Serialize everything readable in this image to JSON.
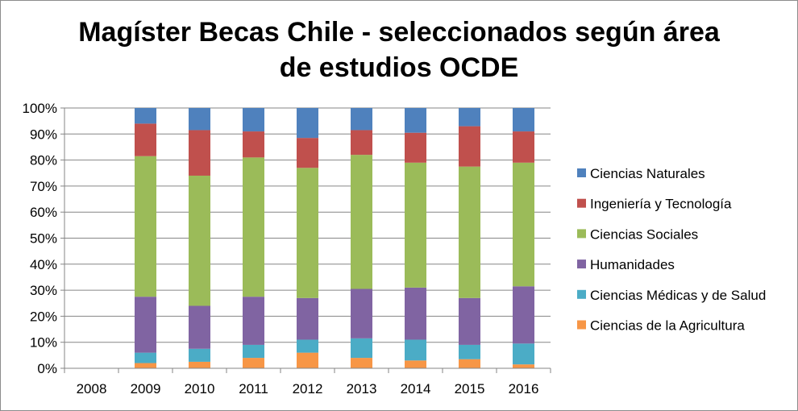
{
  "chart_data": {
    "type": "bar",
    "stacked": true,
    "percent": true,
    "title_line1": "Magíster Becas Chile - seleccionados según área",
    "title_line2": "de estudios OCDE",
    "categories": [
      "2008",
      "2009",
      "2010",
      "2011",
      "2012",
      "2013",
      "2014",
      "2015",
      "2016"
    ],
    "y_ticks": [
      "0%",
      "10%",
      "20%",
      "30%",
      "40%",
      "50%",
      "60%",
      "70%",
      "80%",
      "90%",
      "100%"
    ],
    "ylim": [
      0,
      100
    ],
    "grid": true,
    "legend_position": "right",
    "series": [
      {
        "name": "Ciencias de la Agricultura",
        "color": "#f79646",
        "values": [
          0,
          2,
          2.5,
          4,
          6,
          4,
          3,
          3.5,
          1.5
        ]
      },
      {
        "name": "Ciencias Médicas y de Salud",
        "color": "#4bacc6",
        "values": [
          0,
          4,
          5,
          5,
          5,
          7.5,
          8,
          5.5,
          8
        ]
      },
      {
        "name": "Humanidades",
        "color": "#8064a2",
        "values": [
          0,
          21.5,
          16.5,
          18.5,
          16,
          19,
          20,
          18,
          22
        ]
      },
      {
        "name": "Ciencias Sociales",
        "color": "#9bbb59",
        "values": [
          0,
          54,
          50,
          53.5,
          50,
          51.5,
          48,
          50.5,
          47.5
        ]
      },
      {
        "name": "Ingeniería y Tecnología",
        "color": "#c0504d",
        "values": [
          0,
          12.5,
          17.5,
          10,
          11.5,
          9.5,
          11.5,
          15.5,
          12
        ]
      },
      {
        "name": "Ciencias Naturales",
        "color": "#4f81bd",
        "values": [
          0,
          6,
          8.5,
          9,
          11.5,
          8.5,
          9.5,
          7,
          9
        ]
      }
    ]
  }
}
